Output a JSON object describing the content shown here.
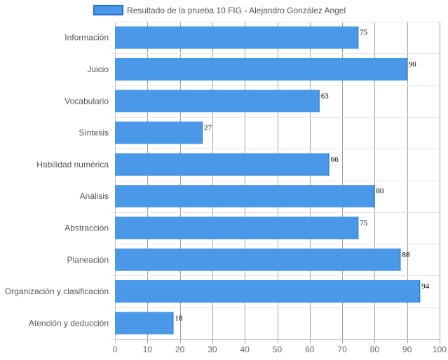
{
  "chart_data": {
    "type": "bar",
    "orientation": "horizontal",
    "title": "",
    "xlabel": "",
    "ylabel": "",
    "xlim": [
      0,
      100
    ],
    "x_ticks": [
      0,
      10,
      20,
      30,
      40,
      50,
      60,
      70,
      80,
      90,
      100
    ],
    "grid": true,
    "legend_position": "top",
    "categories": [
      "Información",
      "Juicio",
      "Vocabulario",
      "Síntesis",
      "Habilidad numérica",
      "Análisis",
      "Abstracción",
      "Planeación",
      "Organización y clasificación",
      "Atención y deducción"
    ],
    "series": [
      {
        "name": "Resultado de la prueba 10 FIG - Alejandro González Angel",
        "values": [
          75,
          90,
          63,
          27,
          66,
          80,
          75,
          88,
          94,
          18
        ],
        "color": "#4a98e8",
        "border_color": "#1e6fd0"
      }
    ]
  }
}
